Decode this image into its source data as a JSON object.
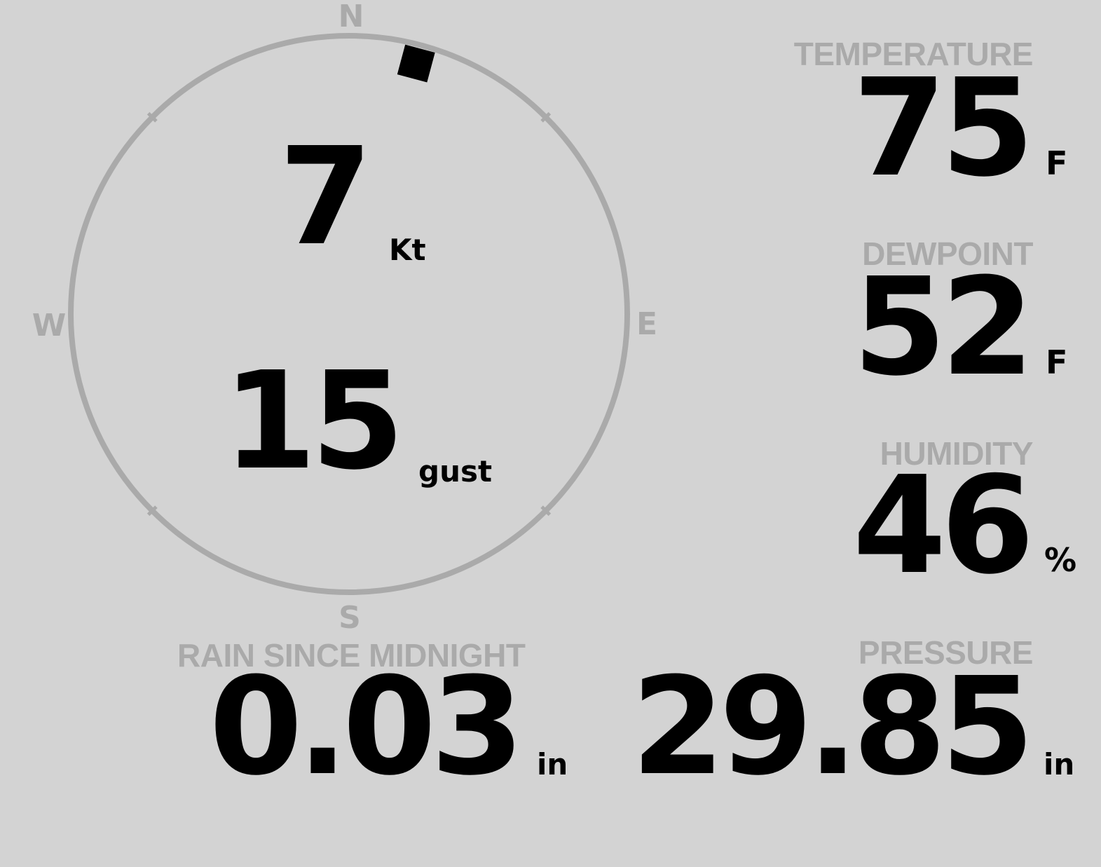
{
  "colors": {
    "background": "#d3d3d3",
    "label": "#aaaaaa",
    "value": "#000000",
    "compass_ring": "#aaaaaa"
  },
  "compass": {
    "cardinals": {
      "north": "N",
      "east": "E",
      "south": "S",
      "west": "W"
    },
    "wind_direction_deg": 15,
    "wind_speed": "7",
    "wind_speed_unit": "Kt",
    "gust": "15",
    "gust_unit": "gust"
  },
  "temperature": {
    "label": "TEMPERATURE",
    "value": "75",
    "unit": "F"
  },
  "dewpoint": {
    "label": "DEWPOINT",
    "value": "52",
    "unit": "F"
  },
  "humidity": {
    "label": "HUMIDITY",
    "value": "46",
    "unit": "%"
  },
  "pressure": {
    "label": "PRESSURE",
    "value": "29.85",
    "unit": "in"
  },
  "rain": {
    "label": "RAIN SINCE MIDNIGHT",
    "value": "0.03",
    "unit": "in"
  }
}
